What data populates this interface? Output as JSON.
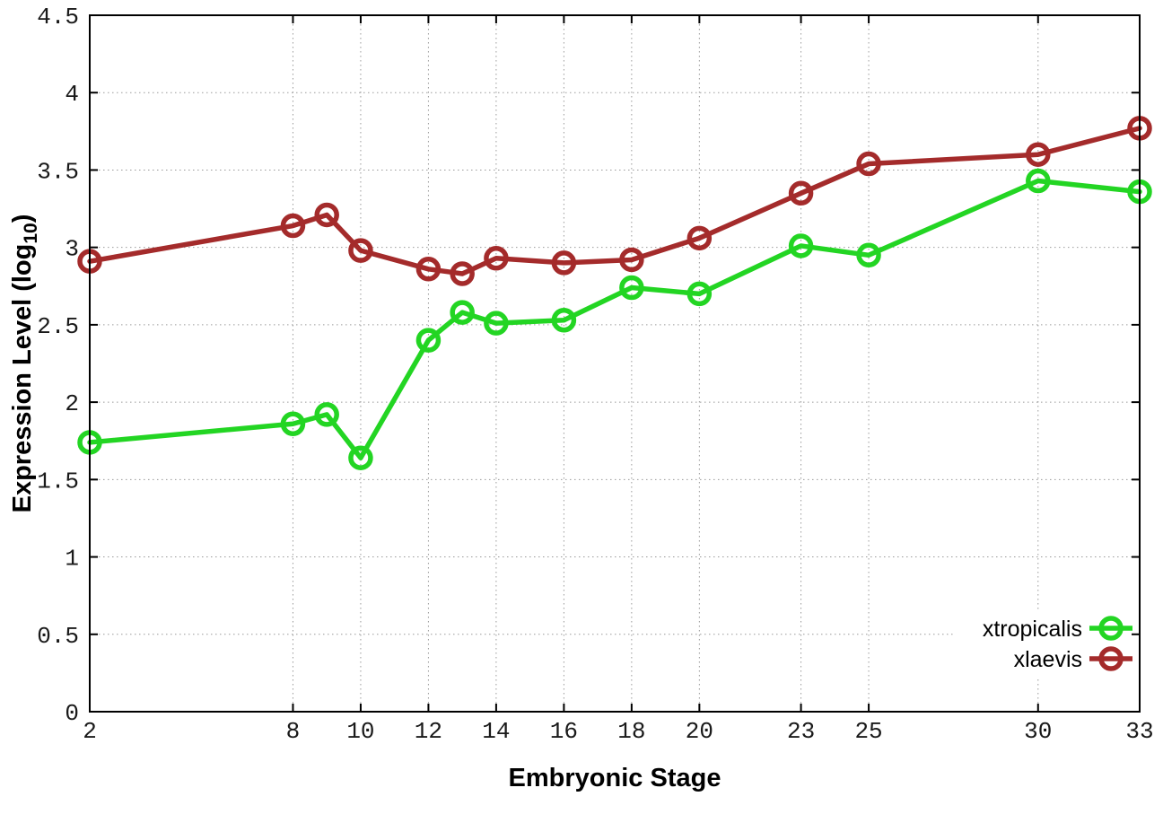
{
  "chart_data": {
    "type": "line",
    "title": "",
    "xlabel": "Embryonic Stage",
    "ylabel": "Expression Level (log10)",
    "ylabel_parts": {
      "prefix": "Expression Level (log",
      "sub": "10",
      "suffix": ")"
    },
    "x": [
      2,
      8,
      9,
      10,
      12,
      13,
      14,
      16,
      18,
      20,
      23,
      25,
      30,
      33
    ],
    "xlim": [
      2,
      33
    ],
    "ylim": [
      0,
      4.5
    ],
    "xticks": [
      2,
      8,
      10,
      12,
      14,
      16,
      18,
      20,
      23,
      25,
      30,
      33
    ],
    "yticks": [
      0,
      0.5,
      1,
      1.5,
      2,
      2.5,
      3,
      3.5,
      4,
      4.5
    ],
    "grid": true,
    "legend_position": "bottom-right",
    "series": [
      {
        "name": "xtropicalis",
        "color": "#23d523",
        "values": [
          1.74,
          1.86,
          1.92,
          1.64,
          2.4,
          2.58,
          2.51,
          2.53,
          2.74,
          2.7,
          3.01,
          2.95,
          3.43,
          3.36
        ]
      },
      {
        "name": "xlaevis",
        "color": "#a42b2b",
        "values": [
          2.91,
          3.14,
          3.21,
          2.98,
          2.86,
          2.83,
          2.93,
          2.9,
          2.92,
          3.06,
          3.35,
          3.54,
          3.6,
          3.77
        ]
      }
    ]
  },
  "style": {
    "grid_color": "#9a9a9a",
    "border_color": "#000000",
    "background": "#ffffff"
  }
}
